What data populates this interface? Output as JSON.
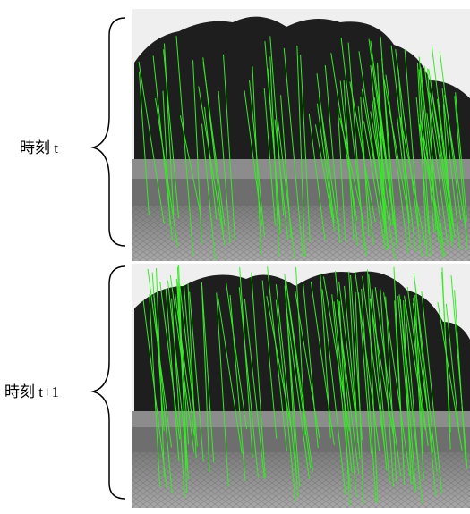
{
  "labels": {
    "top": "時刻 t",
    "bottom": "時刻 t+1"
  }
}
